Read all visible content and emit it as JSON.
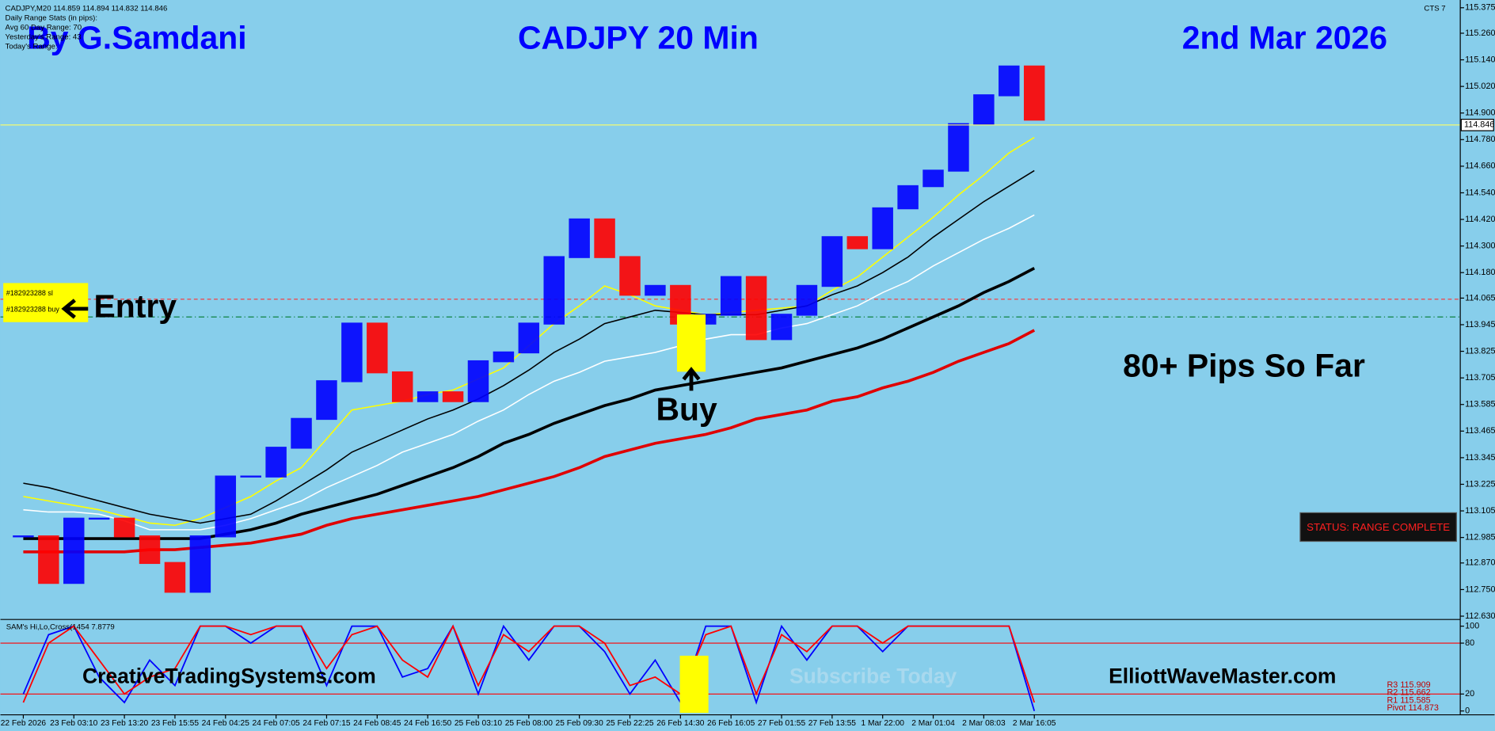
{
  "chart_data": [
    {
      "type": "line",
      "title": "CADJPY 20 Min",
      "author": "By G.Samdani",
      "date": "2nd Mar 2026",
      "corner_label": "CTS 7",
      "info_lines": [
        "CADJPY,M20  114.859 114.894 114.832 114.846",
        "Daily Range Stats (in pips):",
        "Avg 60 Day Range: 70",
        "Yesterday's Range: 43",
        "Today's Range:"
      ],
      "categories": [
        "22 Feb 2026",
        null,
        "23 Feb 03:10",
        null,
        "23 Feb 13:20",
        null,
        "23 Feb 15:55",
        null,
        "24 Feb 04:25",
        null,
        "24 Feb 07:05",
        null,
        "24 Feb 07:15",
        null,
        "24 Feb 08:45",
        null,
        "24 Feb 16:50",
        null,
        "25 Feb 03:10",
        null,
        "25 Feb 08:00",
        null,
        "25 Feb 09:30",
        null,
        "25 Feb 22:25",
        null,
        "26 Feb 14:30",
        null,
        "26 Feb 16:05",
        null,
        "27 Feb 01:55",
        null,
        "27 Feb 13:55",
        null,
        "1 Mar 22:00",
        null,
        "2 Mar 01:04",
        null,
        "2 Mar 08:03",
        null,
        "2 Mar 16:05"
      ],
      "close": {
        "up_color": "#0000ff",
        "down_color": "#ff0000",
        "values": [
          112.99,
          112.78,
          113.07,
          113.07,
          112.99,
          112.87,
          112.74,
          112.99,
          113.26,
          113.26,
          113.39,
          113.52,
          113.69,
          113.95,
          113.73,
          113.6,
          113.64,
          113.6,
          113.78,
          113.82,
          113.95,
          114.25,
          114.42,
          114.25,
          114.08,
          114.12,
          113.95,
          113.99,
          114.16,
          113.88,
          113.99,
          114.12,
          114.34,
          114.29,
          114.47,
          114.57,
          114.64,
          114.85,
          114.98,
          115.11,
          114.87
        ]
      },
      "series": [
        {
          "color": "#ffff00",
          "width": 1.3,
          "values": [
            113.17,
            113.15,
            113.13,
            113.11,
            113.08,
            113.05,
            113.04,
            113.07,
            113.12,
            113.17,
            113.24,
            113.3,
            113.43,
            113.56,
            113.58,
            113.6,
            113.63,
            113.65,
            113.7,
            113.75,
            113.85,
            113.95,
            114.03,
            114.12,
            114.08,
            114.03,
            114.01,
            113.99,
            114.0,
            114.01,
            114.02,
            114.03,
            114.1,
            114.16,
            114.25,
            114.34,
            114.43,
            114.53,
            114.62,
            114.72,
            114.79
          ]
        },
        {
          "color": "#000000",
          "width": 1.3,
          "values": [
            113.23,
            113.21,
            113.18,
            113.15,
            113.12,
            113.09,
            113.07,
            113.05,
            113.07,
            113.09,
            113.15,
            113.22,
            113.29,
            113.37,
            113.42,
            113.47,
            113.52,
            113.56,
            113.61,
            113.67,
            113.74,
            113.82,
            113.88,
            113.95,
            113.98,
            114.01,
            114.0,
            113.99,
            113.99,
            113.99,
            114.01,
            114.03,
            114.08,
            114.12,
            114.18,
            114.25,
            114.34,
            114.42,
            114.5,
            114.57,
            114.64
          ]
        },
        {
          "color": "#ffffff",
          "width": 1.3,
          "values": [
            113.11,
            113.1,
            113.1,
            113.09,
            113.06,
            113.02,
            113.02,
            113.02,
            113.04,
            113.07,
            113.11,
            113.15,
            113.21,
            113.26,
            113.31,
            113.37,
            113.41,
            113.45,
            113.51,
            113.56,
            113.63,
            113.69,
            113.73,
            113.78,
            113.8,
            113.82,
            113.85,
            113.88,
            113.9,
            113.9,
            113.93,
            113.95,
            113.99,
            114.03,
            114.09,
            114.14,
            114.21,
            114.27,
            114.33,
            114.38,
            114.44
          ]
        },
        {
          "color": "#000000",
          "width": 3,
          "values": [
            112.98,
            112.98,
            112.98,
            112.98,
            112.98,
            112.98,
            112.98,
            112.98,
            113.0,
            113.02,
            113.05,
            113.09,
            113.12,
            113.15,
            113.18,
            113.22,
            113.26,
            113.3,
            113.35,
            113.41,
            113.45,
            113.5,
            113.54,
            113.58,
            113.61,
            113.65,
            113.67,
            113.69,
            113.71,
            113.73,
            113.75,
            113.78,
            113.81,
            113.84,
            113.88,
            113.93,
            113.98,
            114.03,
            114.09,
            114.14,
            114.2
          ]
        },
        {
          "color": "#e00000",
          "width": 3,
          "values": [
            112.92,
            112.92,
            112.92,
            112.92,
            112.92,
            112.93,
            112.93,
            112.94,
            112.95,
            112.96,
            112.98,
            113.0,
            113.04,
            113.07,
            113.09,
            113.11,
            113.13,
            113.15,
            113.17,
            113.2,
            113.23,
            113.26,
            113.3,
            113.35,
            113.38,
            113.41,
            113.43,
            113.45,
            113.48,
            113.52,
            113.54,
            113.56,
            113.6,
            113.62,
            113.66,
            113.69,
            113.73,
            113.78,
            113.82,
            113.86,
            113.92
          ]
        }
      ],
      "ylim": [
        112.615,
        115.397
      ],
      "yticks": [
        115.375,
        {
          "value": 115.26,
          "label": "115.260"
        },
        {
          "value": 115.14,
          "label": "115.140"
        },
        {
          "value": 115.02,
          "label": "115.020"
        },
        {
          "value": 114.9,
          "label": "114.900"
        },
        {
          "value": 114.78,
          "label": "114.780"
        },
        {
          "value": 114.66,
          "label": "114.660"
        },
        {
          "value": 114.54,
          "label": "114.540"
        },
        {
          "value": 114.42,
          "label": "114.420"
        },
        {
          "value": 114.3,
          "label": "114.300"
        },
        {
          "value": 114.18,
          "label": "114.180"
        },
        114.065,
        113.945,
        113.825,
        113.705,
        113.585,
        113.465,
        113.345,
        113.225,
        113.105,
        112.985,
        {
          "value": 112.87,
          "label": "112.870"
        },
        {
          "value": 112.75,
          "label": "112.750"
        },
        {
          "value": 112.63,
          "label": "112.630"
        }
      ],
      "last_price": 114.846,
      "last_price_color": "#ffff66",
      "orders": [
        {
          "label": "#182923288 sl",
          "price": 114.06,
          "color": "#ff3030"
        },
        {
          "label": "#182923288 buy",
          "price": 113.98,
          "color": "#007a30"
        }
      ],
      "annotations": {
        "entry": "Entry",
        "buy": "Buy",
        "pips": "80+ Pips So Far",
        "status": "STATUS: RANGE COMPLETE"
      }
    },
    {
      "type": "line",
      "title": "SAM's Hi,Lo,Cross(1454 7.8779",
      "series": [
        {
          "color": "#0000ff",
          "values": [
            20,
            90,
            100,
            40,
            10,
            60,
            30,
            100,
            100,
            80,
            100,
            100,
            30,
            100,
            100,
            40,
            50,
            100,
            20,
            100,
            60,
            100,
            100,
            70,
            20,
            60,
            10,
            100,
            100,
            10,
            100,
            60,
            100,
            100,
            70,
            100,
            100,
            100,
            100,
            100,
            0
          ]
        },
        {
          "color": "#ff0000",
          "values": [
            10,
            80,
            100,
            60,
            20,
            40,
            50,
            100,
            100,
            90,
            100,
            100,
            50,
            90,
            100,
            60,
            40,
            100,
            30,
            90,
            70,
            100,
            100,
            80,
            30,
            40,
            20,
            90,
            100,
            20,
            90,
            70,
            100,
            100,
            80,
            100,
            100,
            100,
            100,
            100,
            10
          ]
        }
      ],
      "ylim": [
        0,
        100
      ],
      "yticks": [
        0,
        20,
        80,
        100
      ],
      "levels": [
        20,
        80
      ],
      "level_color": "#ff0000",
      "pivots": [
        "R3 115.909",
        "R2 115.662",
        "R1 115.585",
        "Pivot 114.873"
      ],
      "watermarks": [
        "CreativeTradingSystems.com",
        "Subscribe Today",
        "ElliottWaveMaster.com"
      ]
    }
  ]
}
